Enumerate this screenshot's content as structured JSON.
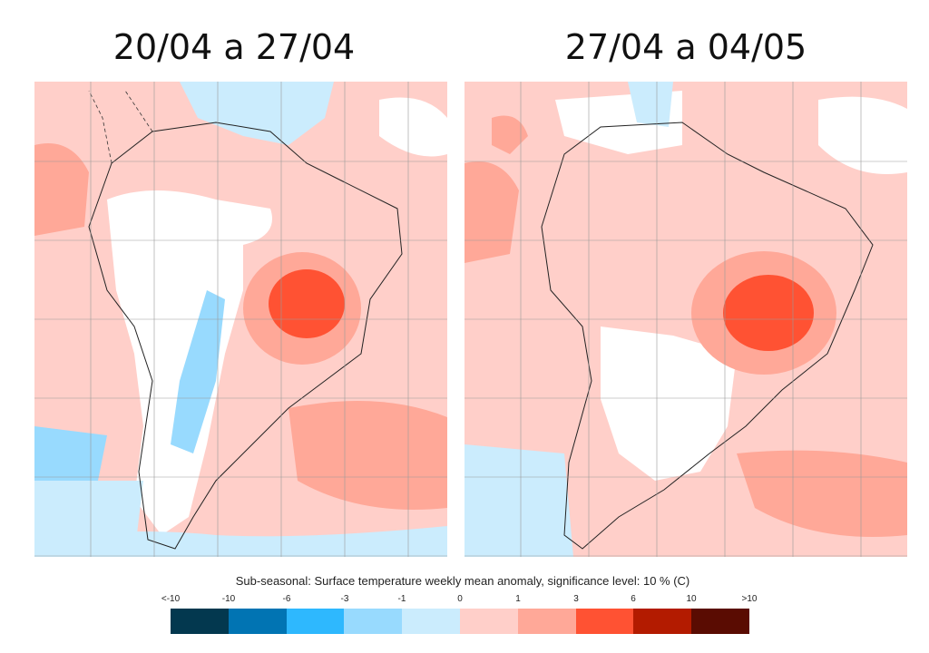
{
  "panels": [
    {
      "title": "20/04 a 27/04"
    },
    {
      "title": "27/04 a 04/05"
    }
  ],
  "colorbar": {
    "title": "Sub-seasonal: Surface temperature weekly mean anomaly, significance level: 10 % (C)",
    "tick_labels": [
      "<-10",
      "-10",
      "-6",
      "-3",
      "-1",
      "0",
      "1",
      "3",
      "6",
      "10",
      ">10"
    ],
    "colors": [
      "#03384f",
      "#0174b3",
      "#2eb8fe",
      "#98dafe",
      "#cbecfd",
      "#ffcfc9",
      "#ffa898",
      "#ff5233",
      "#b31b00",
      "#5a0c02"
    ]
  }
}
